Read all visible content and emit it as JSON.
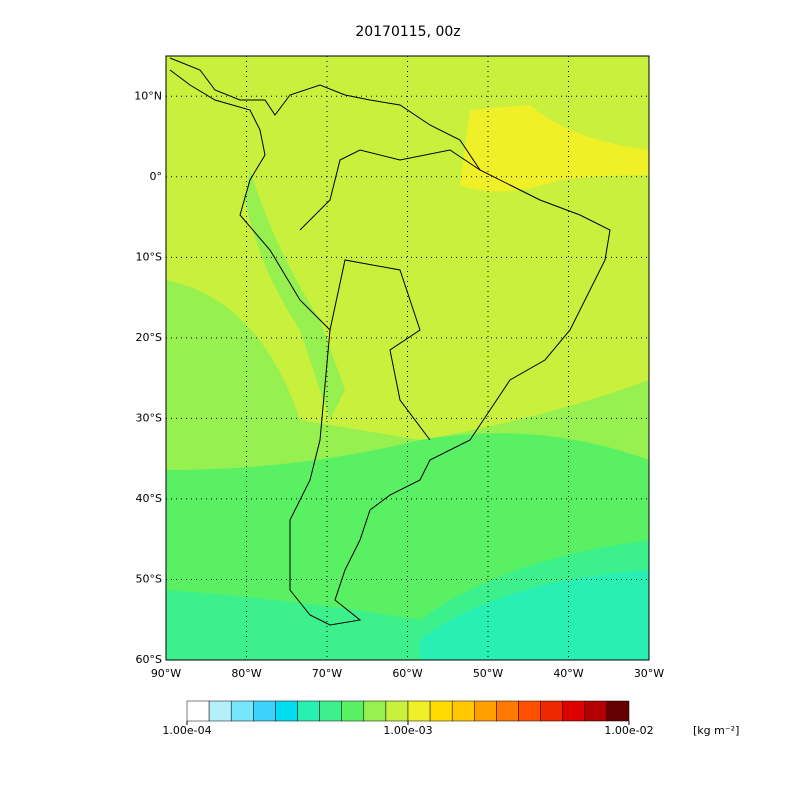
{
  "title": "20170115, 00z",
  "lon_range": [
    -90,
    -30
  ],
  "lat_range": [
    15,
    -60
  ],
  "lon_ticks": [
    {
      "value": -90,
      "label": "90°W"
    },
    {
      "value": -80,
      "label": "80°W"
    },
    {
      "value": -70,
      "label": "70°W"
    },
    {
      "value": -60,
      "label": "60°W"
    },
    {
      "value": -50,
      "label": "50°W"
    },
    {
      "value": -40,
      "label": "40°W"
    },
    {
      "value": -30,
      "label": "30°W"
    }
  ],
  "lat_ticks": [
    {
      "value": 10,
      "label": "10°N"
    },
    {
      "value": 0,
      "label": "0°"
    },
    {
      "value": -10,
      "label": "10°S"
    },
    {
      "value": -20,
      "label": "20°S"
    },
    {
      "value": -30,
      "label": "30°S"
    },
    {
      "value": -40,
      "label": "40°S"
    },
    {
      "value": -50,
      "label": "50°S"
    },
    {
      "value": -60,
      "label": "60°S"
    }
  ],
  "colorbar": {
    "colors": [
      "#ffffff",
      "#b4f0fa",
      "#78e6fa",
      "#3cd2fa",
      "#00dcf0",
      "#28f0b4",
      "#3cf08c",
      "#5af064",
      "#96f050",
      "#c8f03c",
      "#f0f028",
      "#ffdc00",
      "#ffc800",
      "#ffa000",
      "#ff7800",
      "#ff5000",
      "#f02800",
      "#dc0000",
      "#b40000",
      "#640000"
    ],
    "range": [
      0.0001,
      0.01
    ],
    "ticks": [
      {
        "value": 0.0001,
        "label": "1.00e-04"
      },
      {
        "value": 0.001,
        "label": "1.00e-03"
      },
      {
        "value": 0.01,
        "label": "1.00e-02"
      }
    ],
    "unit": "[kg m⁻²]"
  }
}
